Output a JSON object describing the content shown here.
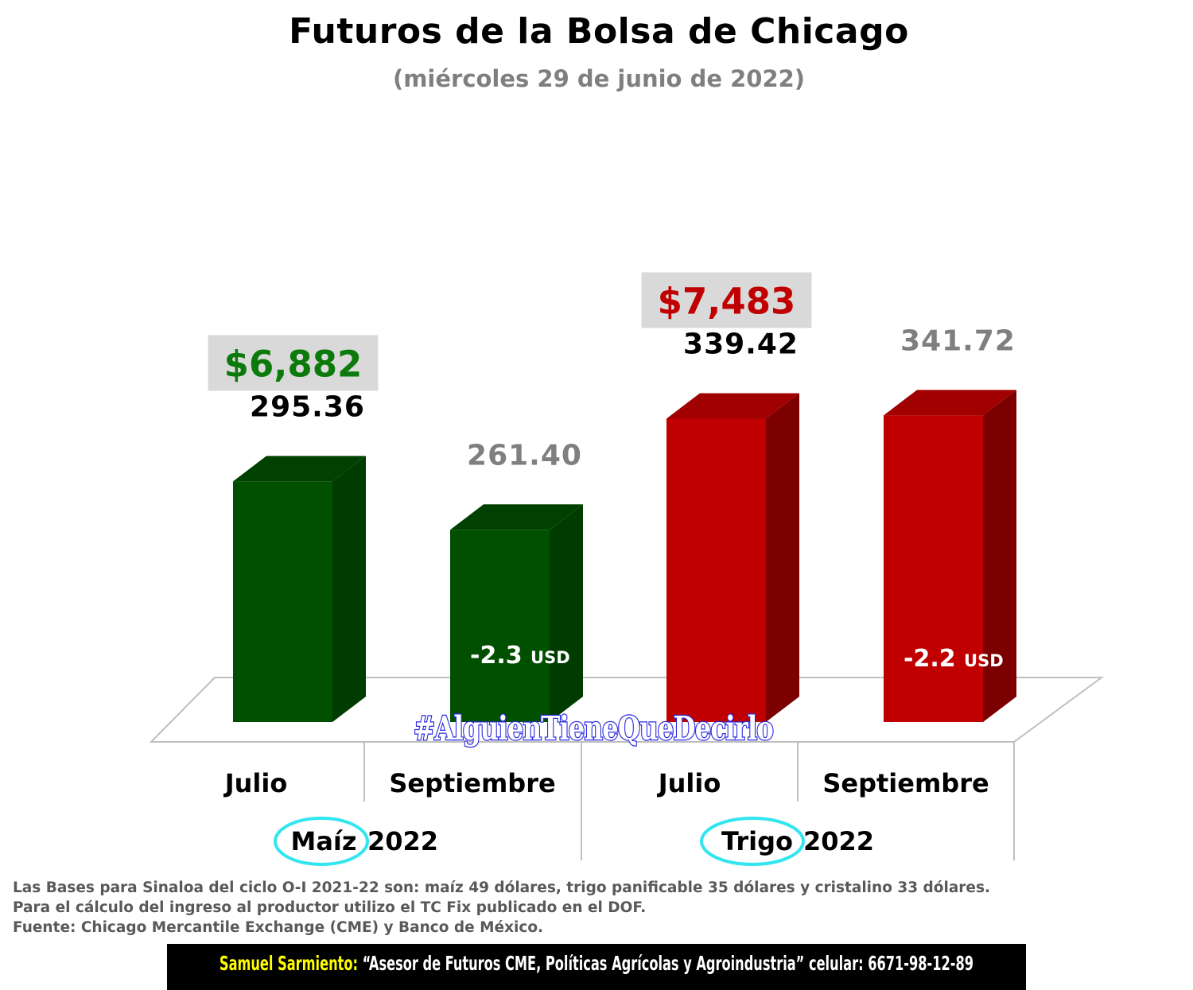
{
  "header": {
    "title": "Futuros de la Bolsa de Chicago",
    "subtitle": "(miércoles 29 de junio de 2022)"
  },
  "chart_data": {
    "type": "bar",
    "categories": [
      "Julio",
      "Septiembre",
      "Julio",
      "Septiembre"
    ],
    "values": [
      295.36,
      261.4,
      339.42,
      341.72
    ],
    "value_labels": [
      "295.36",
      "261.40",
      "339.42",
      "341.72"
    ],
    "groups": [
      {
        "label_word": "Maíz",
        "label_year": "2022",
        "categories_index": [
          0,
          1
        ]
      },
      {
        "label_word": "Trigo",
        "label_year": "2022",
        "categories_index": [
          2,
          3
        ]
      }
    ],
    "price_badges": [
      {
        "bar_index": 0,
        "text": "$6,882",
        "color": "#0b7a0b"
      },
      {
        "bar_index": 2,
        "text": "$7,483",
        "color": "#c00000"
      }
    ],
    "spreads": [
      {
        "bar_index": 1,
        "value": "-2.3",
        "unit": "USD"
      },
      {
        "bar_index": 3,
        "value": "-2.2",
        "unit": "USD"
      }
    ],
    "colors": {
      "maiz_front": "#005000",
      "maiz_side": "#003c00",
      "maiz_top": "#004000",
      "trigo_front": "#c00000",
      "trigo_side": "#7c0000",
      "trigo_top": "#a00000",
      "label_dark": "#000000",
      "label_gray": "#7f7f7f",
      "badge_bg": "#d9d9d9",
      "highlight_ring": "#32e6f0"
    },
    "watermark": "#AlguienTieneQueDecirlo"
  },
  "notes": [
    "Las Bases para Sinaloa del ciclo O-I 2021-22 son: maíz 49 dólares, trigo panificable 35 dólares y cristalino 33 dólares.",
    "Para el cálculo del ingreso al productor utilizo el TC Fix publicado en el DOF.",
    "Fuente: Chicago Mercantile Exchange (CME) y Banco de México."
  ],
  "footer": {
    "name": "Samuel Sarmiento:",
    "tagline": " “Asesor de Futuros CME, Políticas Agrícolas y Agroindustria”",
    "contact": "  celular: 6671-98-12-89"
  }
}
